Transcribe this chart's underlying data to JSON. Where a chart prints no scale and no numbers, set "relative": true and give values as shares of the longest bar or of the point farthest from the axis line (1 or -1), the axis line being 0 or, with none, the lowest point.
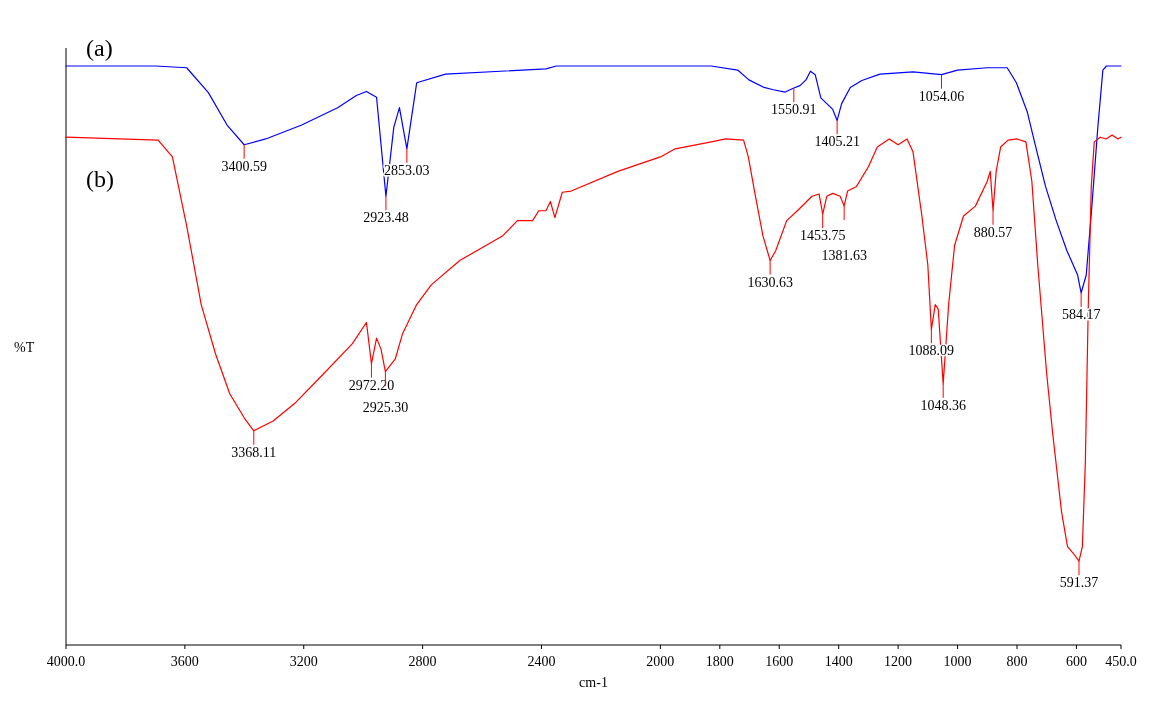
{
  "chart_data": {
    "type": "line",
    "relative": true,
    "xlabel": "cm-1",
    "ylabel": "%T",
    "xlim": [
      4000,
      450
    ],
    "xticks": [
      {
        "value": 4000,
        "label": "4000.0"
      },
      3600,
      3200,
      2800,
      2400,
      2000,
      1800,
      1600,
      1400,
      1200,
      1000,
      800,
      600,
      {
        "value": 450,
        "label": "450.0"
      }
    ],
    "series": [
      {
        "name": "(a)",
        "color": "#0000ff",
        "x": [
          4000,
          3700,
          3594,
          3521,
          3458,
          3400.59,
          3328,
          3207,
          3086,
          3023,
          2989,
          2955,
          2923.48,
          2897,
          2878,
          2853.03,
          2820,
          2723,
          2385,
          2350,
          2000,
          1829,
          1740,
          1702,
          1651,
          1620,
          1580,
          1550.91,
          1530,
          1510,
          1495,
          1479,
          1460,
          1440,
          1420,
          1405.21,
          1390,
          1361,
          1322,
          1261,
          1150,
          1054.06,
          1000,
          900,
          833,
          802,
          765,
          741,
          704,
          668,
          632,
          596,
          584.17,
          567,
          548,
          528,
          511,
          499,
          475,
          450
        ],
        "values": [
          1,
          1,
          0.997,
          0.954,
          0.898,
          0.864,
          0.874,
          0.898,
          0.928,
          0.949,
          0.956,
          0.946,
          0.775,
          0.894,
          0.928,
          0.857,
          0.971,
          0.986,
          0.995,
          1,
          1,
          1,
          0.993,
          0.976,
          0.963,
          0.959,
          0.955,
          0.962,
          0.966,
          0.976,
          0.991,
          0.985,
          0.945,
          0.935,
          0.925,
          0.906,
          0.935,
          0.963,
          0.975,
          0.986,
          0.99,
          0.985,
          0.993,
          0.997,
          0.997,
          0.971,
          0.92,
          0.869,
          0.792,
          0.733,
          0.681,
          0.639,
          0.608,
          0.639,
          0.758,
          0.894,
          0.993,
          1,
          1,
          1
        ]
      },
      {
        "name": "(b)",
        "color": "#ff0000",
        "x": [
          4000,
          3690,
          3642,
          3594,
          3545,
          3497,
          3449,
          3400,
          3368.11,
          3303,
          3231,
          3134,
          3037,
          2989,
          2972.2,
          2955,
          2940,
          2925.3,
          2892,
          2868,
          2820,
          2771,
          2675,
          2530,
          2481,
          2430,
          2409,
          2385,
          2370,
          2355,
          2330,
          2300,
          2143,
          2000,
          1950,
          1829,
          1780,
          1720,
          1704,
          1680,
          1655,
          1630.63,
          1612,
          1575,
          1539,
          1490,
          1466,
          1453.75,
          1440,
          1420,
          1395,
          1381.63,
          1370,
          1340,
          1300,
          1270,
          1230,
          1200,
          1170,
          1150,
          1120,
          1100,
          1088.09,
          1075,
          1065,
          1048.36,
          1030,
          1010,
          980,
          940,
          900,
          890,
          880.57,
          870,
          855,
          830,
          800,
          770,
          750,
          730,
          700,
          680,
          650,
          630,
          610,
          591.37,
          580,
          570,
          560,
          550,
          540,
          520,
          500,
          480,
          460,
          450
        ],
        "values": [
          0.877,
          0.872,
          0.843,
          0.724,
          0.588,
          0.503,
          0.434,
          0.392,
          0.37,
          0.387,
          0.417,
          0.468,
          0.52,
          0.557,
          0.486,
          0.53,
          0.511,
          0.472,
          0.494,
          0.537,
          0.588,
          0.622,
          0.664,
          0.707,
          0.733,
          0.733,
          0.75,
          0.75,
          0.766,
          0.738,
          0.782,
          0.784,
          0.818,
          0.843,
          0.857,
          0.869,
          0.874,
          0.872,
          0.843,
          0.775,
          0.707,
          0.664,
          0.681,
          0.733,
          0.75,
          0.775,
          0.779,
          0.744,
          0.775,
          0.78,
          0.775,
          0.758,
          0.784,
          0.792,
          0.826,
          0.86,
          0.874,
          0.864,
          0.874,
          0.852,
          0.741,
          0.656,
          0.545,
          0.588,
          0.58,
          0.451,
          0.588,
          0.69,
          0.741,
          0.758,
          0.801,
          0.818,
          0.75,
          0.818,
          0.86,
          0.872,
          0.874,
          0.869,
          0.801,
          0.656,
          0.468,
          0.366,
          0.23,
          0.17,
          0.158,
          0.145,
          0.17,
          0.315,
          0.588,
          0.792,
          0.869,
          0.877,
          0.874,
          0.881,
          0.874,
          0.877
        ]
      }
    ],
    "annotations": [
      {
        "text": "3400.59",
        "x": 3400.59,
        "y": 0.864
      },
      {
        "text": "2923.48",
        "x": 2923.48,
        "y": 0.775
      },
      {
        "text": "2853.03",
        "x": 2853.03,
        "y": 0.857
      },
      {
        "text": "1550.91",
        "x": 1550.91,
        "y": 0.962
      },
      {
        "text": "1405.21",
        "x": 1405.21,
        "y": 0.906
      },
      {
        "text": "1054.06",
        "x": 1054.06,
        "y": 0.985
      },
      {
        "text": "584.17",
        "x": 584.17,
        "y": 0.608
      },
      {
        "text": "3368.11",
        "x": 3368.11,
        "y": 0.37
      },
      {
        "text": "2972.20",
        "x": 2972.2,
        "y": 0.486
      },
      {
        "text": "2925.30",
        "x": 2925.3,
        "y": 0.472
      },
      {
        "text": "1630.63",
        "x": 1630.63,
        "y": 0.664
      },
      {
        "text": "1453.75",
        "x": 1453.75,
        "y": 0.744
      },
      {
        "text": "1381.63",
        "x": 1381.63,
        "y": 0.758
      },
      {
        "text": "1088.09",
        "x": 1088.09,
        "y": 0.545
      },
      {
        "text": "1048.36",
        "x": 1048.36,
        "y": 0.451
      },
      {
        "text": "880.57",
        "x": 880.57,
        "y": 0.75
      },
      {
        "text": "591.37",
        "x": 591.37,
        "y": 0.145
      }
    ]
  }
}
